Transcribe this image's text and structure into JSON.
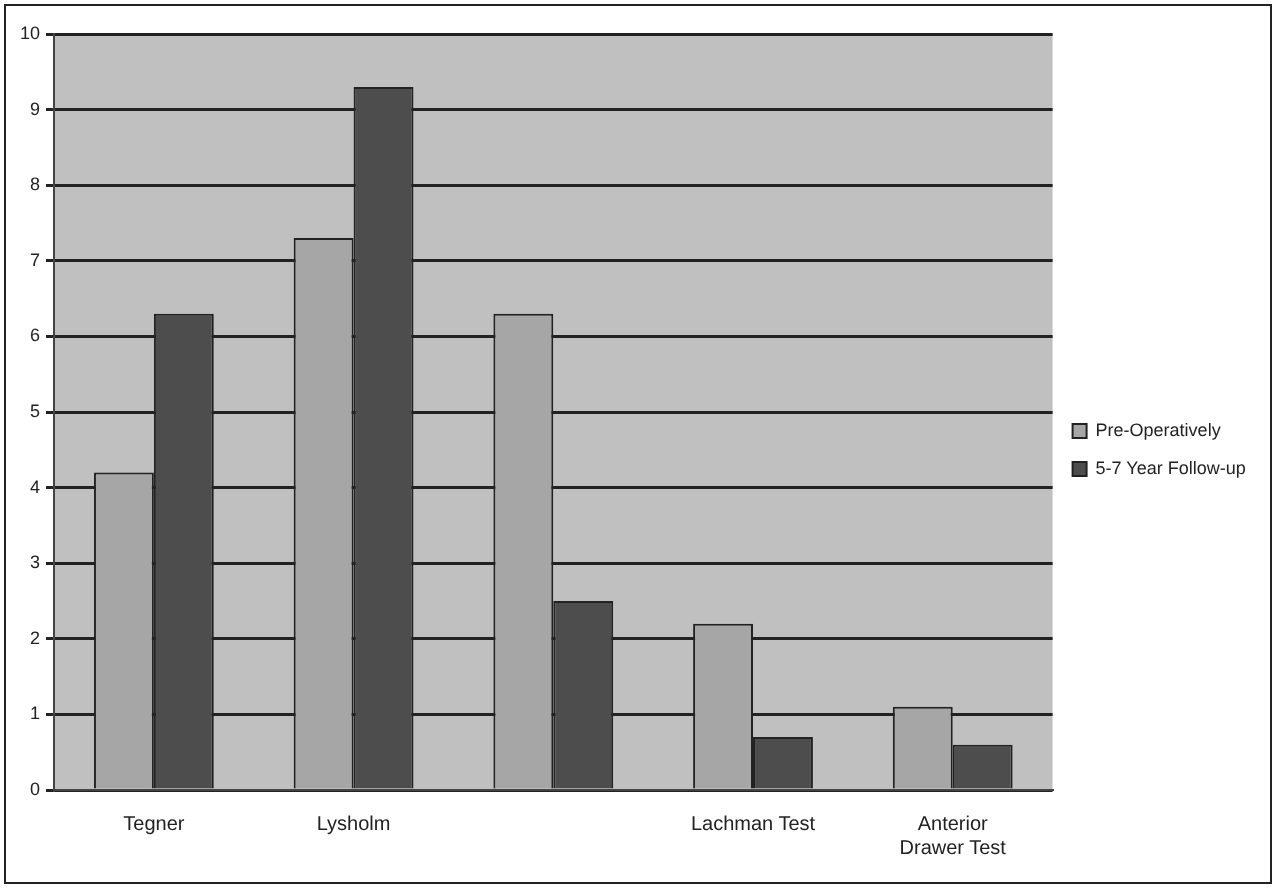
{
  "chart_data": {
    "type": "bar",
    "categories": [
      "Tegner",
      "Lysholm",
      null,
      "Lachman Test",
      [
        "Anterior",
        "Drawer Test"
      ]
    ],
    "series": [
      {
        "name": "Pre-Operatively",
        "color": "#a6a6a6",
        "values": [
          4.2,
          7.3,
          6.3,
          2.2,
          1.1
        ]
      },
      {
        "name": "5-7 Year Follow-up",
        "color": "#4d4d4d",
        "values": [
          6.3,
          9.3,
          2.5,
          0.7,
          0.6
        ]
      }
    ],
    "ylim": [
      0,
      10
    ],
    "yticks": [
      0,
      1,
      2,
      3,
      4,
      5,
      6,
      7,
      8,
      9,
      10
    ],
    "grid": "y",
    "legend": "right"
  }
}
